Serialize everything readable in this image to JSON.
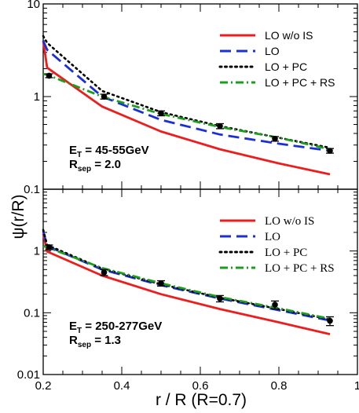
{
  "chart_data": [
    {
      "type": "line",
      "yscale": "log",
      "xlim": [
        0.2,
        1.0
      ],
      "ylim": [
        0.1,
        10
      ],
      "xticks": [
        0.2,
        0.4,
        0.6,
        0.8,
        1.0
      ],
      "yticks": [
        0.1,
        1,
        10
      ],
      "ytick_labels": [
        "0.1",
        "1",
        "10"
      ],
      "annotation": {
        "line1_main": "E",
        "line1_sub": "T",
        "line1_rest": " = 45-55GeV",
        "line2_main": "R",
        "line2_sub": "sep",
        "line2_rest": " = 2.0"
      },
      "series": [
        {
          "name": "LO w/o IS",
          "color": "#ee1c1c",
          "dash": "solid",
          "x": [
            0.2,
            0.21,
            0.35,
            0.5,
            0.65,
            0.8,
            0.93
          ],
          "y": [
            4.0,
            2.05,
            0.78,
            0.42,
            0.27,
            0.19,
            0.145
          ]
        },
        {
          "name": "LO",
          "color": "#1a2fd6",
          "dash": "longdash",
          "x": [
            0.2,
            0.21,
            0.35,
            0.5,
            0.65,
            0.8,
            0.93
          ],
          "y": [
            4.0,
            3.2,
            1.0,
            0.56,
            0.39,
            0.31,
            0.26
          ]
        },
        {
          "name": "LO + PC",
          "color": "#000000",
          "dash": "dot",
          "x": [
            0.2,
            0.21,
            0.35,
            0.5,
            0.65,
            0.8,
            0.93
          ],
          "y": [
            4.5,
            3.8,
            1.15,
            0.68,
            0.48,
            0.36,
            0.28
          ]
        },
        {
          "name": "LO + PC + RS",
          "color": "#1c9e1c",
          "dash": "dashdot",
          "x": [
            0.2,
            0.21,
            0.35,
            0.5,
            0.65,
            0.8,
            0.93
          ],
          "y": [
            1.75,
            1.72,
            1.0,
            0.65,
            0.47,
            0.36,
            0.27
          ]
        }
      ],
      "points": {
        "x": [
          0.215,
          0.355,
          0.5,
          0.65,
          0.79,
          0.93
        ],
        "y": [
          1.68,
          1.0,
          0.66,
          0.48,
          0.35,
          0.26
        ],
        "err": [
          0.08,
          0.06,
          0.04,
          0.03,
          0.02,
          0.015
        ]
      }
    },
    {
      "type": "line",
      "yscale": "log",
      "xlim": [
        0.2,
        1.0
      ],
      "ylim": [
        0.01,
        10
      ],
      "xticks": [
        0.2,
        0.4,
        0.6,
        0.8,
        1.0
      ],
      "xtick_labels": [
        "0.2",
        "0.4",
        "0.6",
        "0.8",
        "1"
      ],
      "yticks": [
        0.01,
        0.1,
        1
      ],
      "ytick_labels": [
        "0.01",
        "0.1",
        "1"
      ],
      "xlabel": "r / R (R=0.7)",
      "annotation": {
        "line1_main": "E",
        "line1_sub": "T",
        "line1_rest": " = 250-277GeV",
        "line2_main": "R",
        "line2_sub": "sep",
        "line2_rest": " = 1.3"
      },
      "series": [
        {
          "name": "LO w/o IS",
          "color": "#ee1c1c",
          "dash": "solid",
          "x": [
            0.2,
            0.21,
            0.35,
            0.5,
            0.65,
            0.8,
            0.93
          ],
          "y": [
            1.9,
            0.98,
            0.4,
            0.2,
            0.115,
            0.07,
            0.045
          ]
        },
        {
          "name": "LO",
          "color": "#1a2fd6",
          "dash": "longdash",
          "x": [
            0.2,
            0.21,
            0.35,
            0.5,
            0.65,
            0.8,
            0.93
          ],
          "y": [
            2.1,
            1.2,
            0.5,
            0.28,
            0.17,
            0.11,
            0.075
          ]
        },
        {
          "name": "LO + PC",
          "color": "#000000",
          "dash": "dot",
          "x": [
            0.2,
            0.21,
            0.35,
            0.5,
            0.65,
            0.8,
            0.93
          ],
          "y": [
            2.2,
            1.25,
            0.52,
            0.29,
            0.175,
            0.115,
            0.078
          ]
        },
        {
          "name": "LO + PC + RS",
          "color": "#1c9e1c",
          "dash": "dashdot",
          "x": [
            0.2,
            0.21,
            0.35,
            0.5,
            0.65,
            0.8,
            0.93
          ],
          "y": [
            1.2,
            1.15,
            0.53,
            0.3,
            0.18,
            0.118,
            0.08
          ]
        }
      ],
      "points": {
        "x": [
          0.215,
          0.355,
          0.5,
          0.65,
          0.79,
          0.93
        ],
        "y": [
          1.15,
          0.45,
          0.3,
          0.17,
          0.135,
          0.074
        ],
        "err": [
          0.1,
          0.05,
          0.03,
          0.02,
          0.02,
          0.012
        ]
      }
    }
  ],
  "ylabel": "ψ(r/R)",
  "legend_styles": [
    "sans",
    "serif"
  ]
}
